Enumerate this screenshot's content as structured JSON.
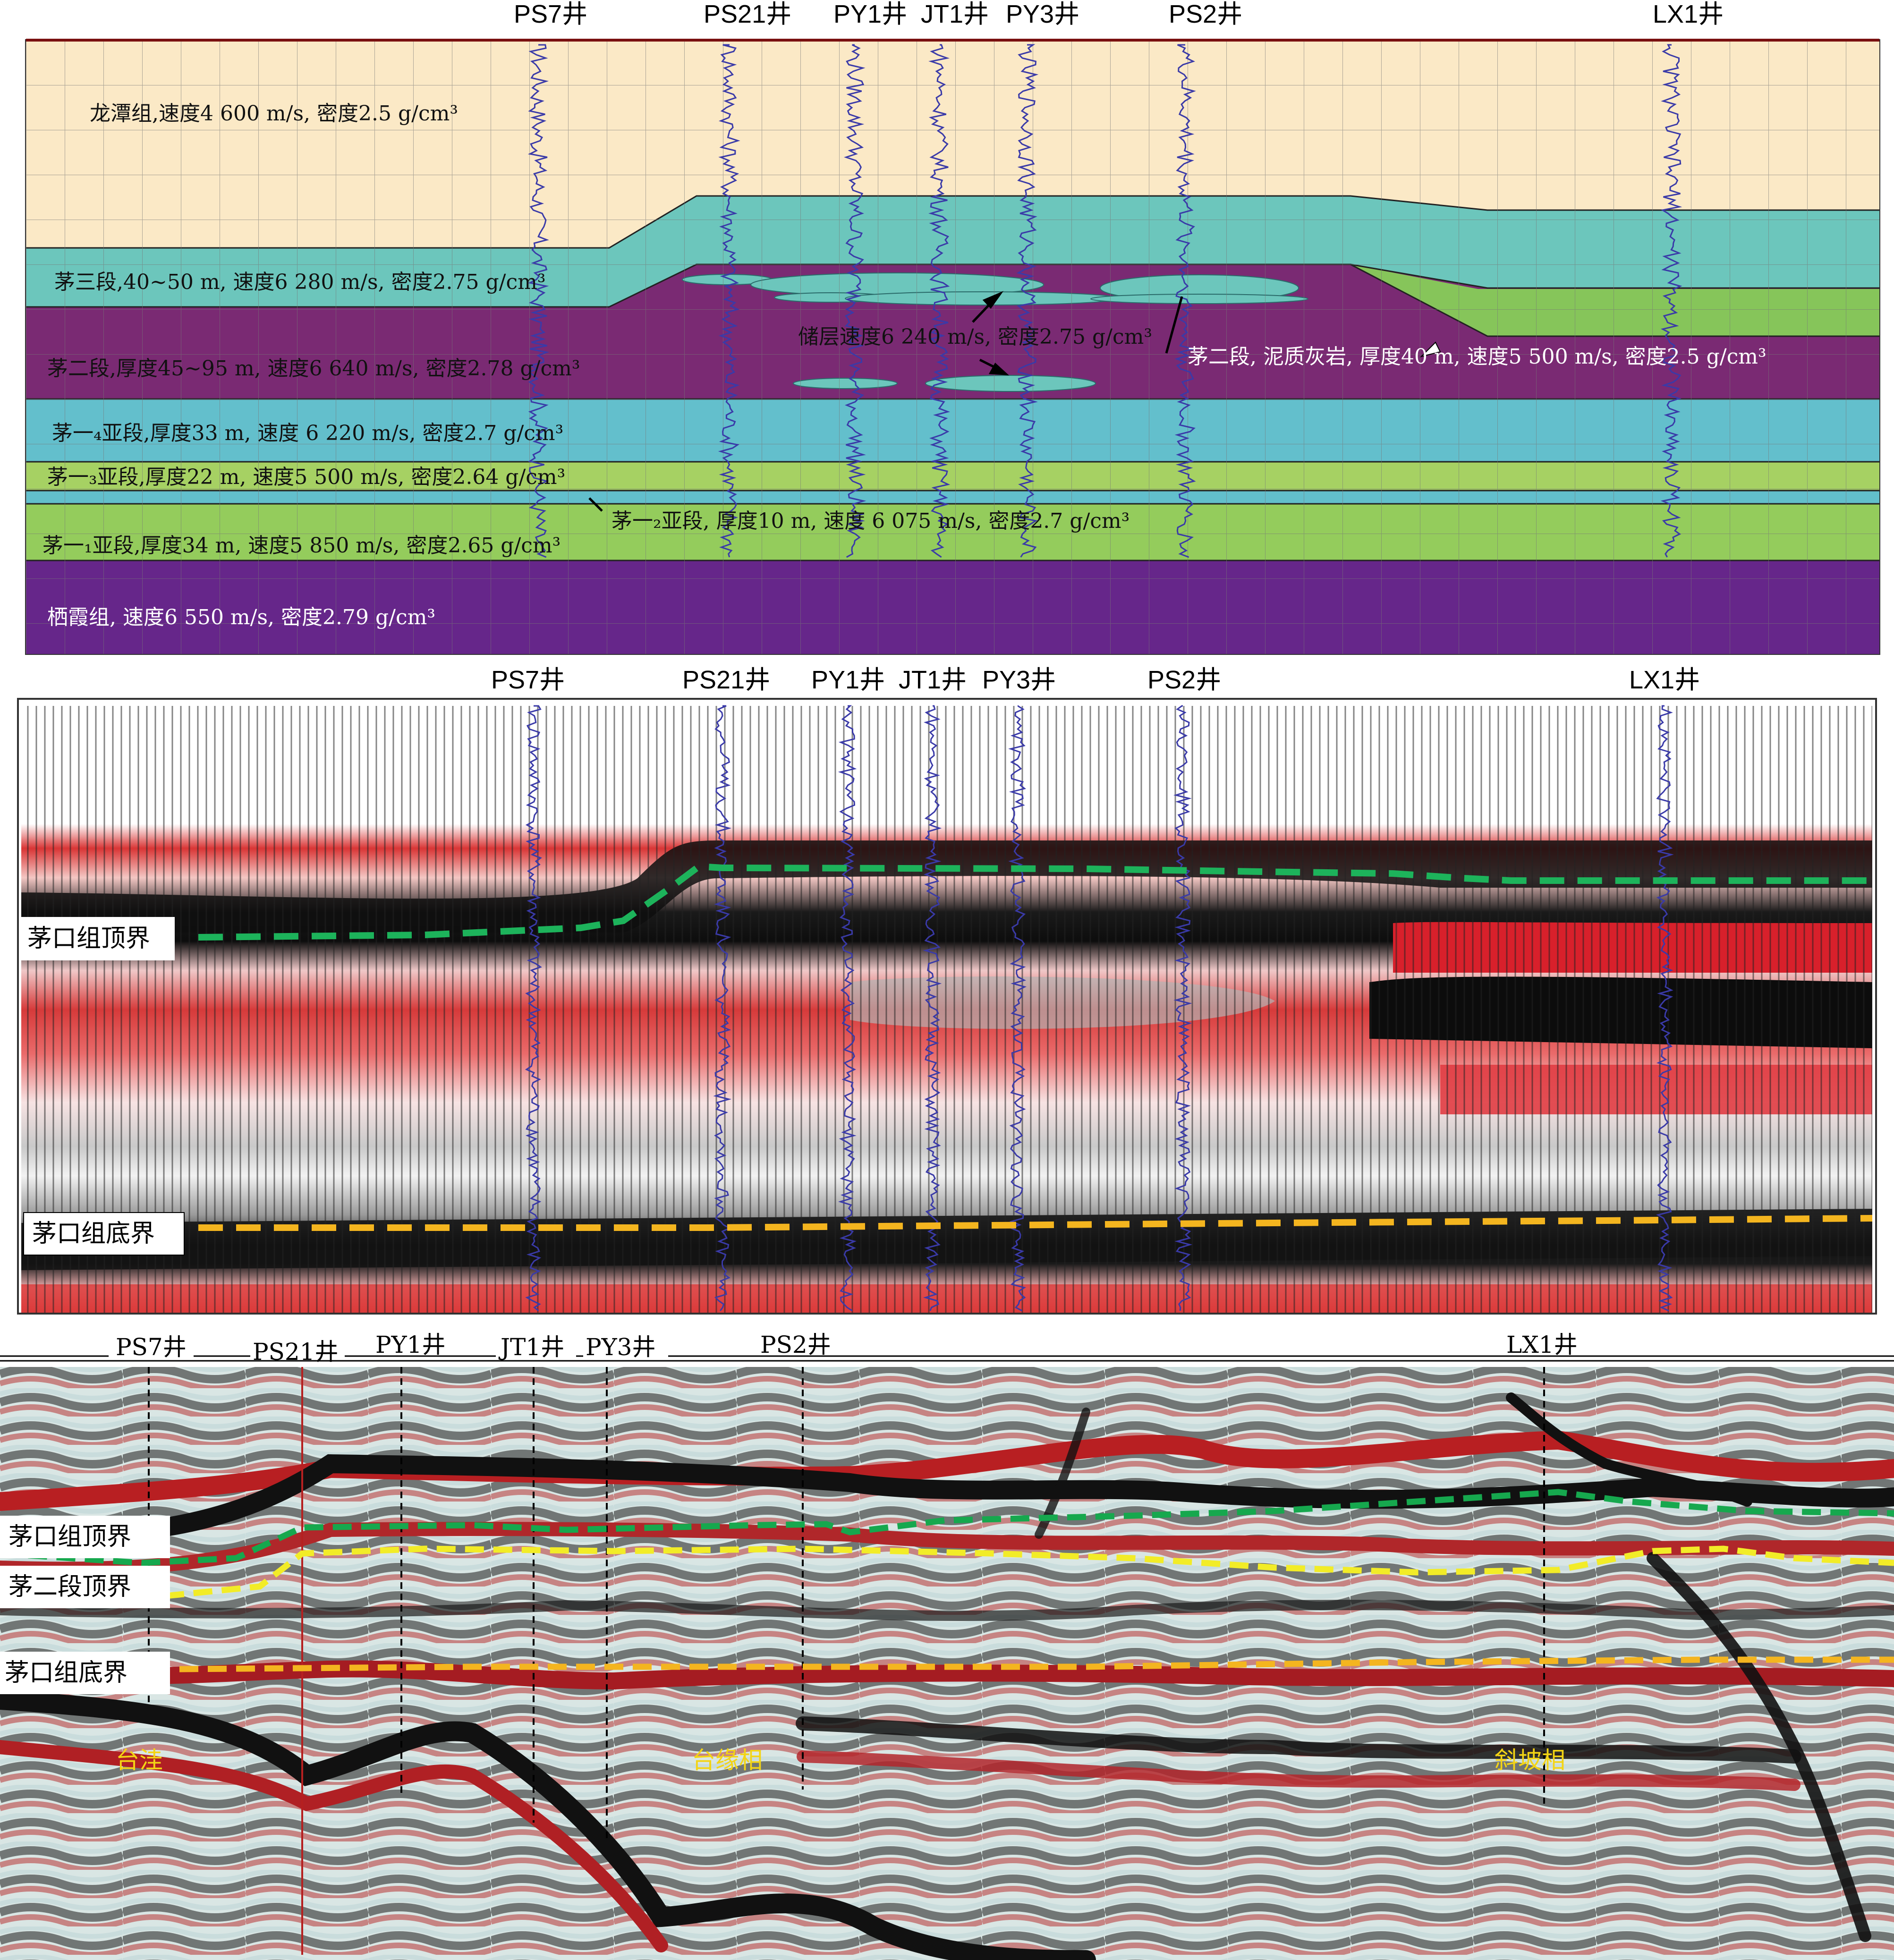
{
  "panel1": {
    "wells": [
      "PS7井",
      "PS21井",
      "PY1井",
      "JT1井",
      "PY3井",
      "PS2井",
      "LX1井"
    ],
    "layers": {
      "longtan": "龙潭组,速度4 600 m/s, 密度2.5 g/cm³",
      "mao3": "茅三段,40~50 m, 速度6 280 m/s, 密度2.75 g/cm³",
      "reservoir": "储层速度6 240  m/s, 密度2.75 g/cm³",
      "mao2": "茅二段,厚度45~95 m, 速度6 640 m/s, 密度2.78  g/cm³",
      "mao2_marl": "茅二段, 泥质灰岩, 厚度40 m, 速度5 500 m/s, 密度2.5 g/cm³",
      "mao1_4": "茅一₄亚段,厚度33 m, 速度 6 220 m/s, 密度2.7 g/cm³",
      "mao1_3": "茅一₃亚段,厚度22 m, 速度5 500 m/s, 密度2.64 g/cm³",
      "mao1_2": "茅一₂亚段, 厚度10  m, 速度 6 075 m/s, 密度2.7 g/cm³",
      "mao1_1": "茅一₁亚段,厚度34 m, 速度5 850 m/s, 密度2.65 g/cm³",
      "qixia": "栖霞组, 速度6 550 m/s, 密度2.79 g/cm³"
    },
    "colors": {
      "longtan": "#fbe9c6",
      "mao3": "#6cc6bc",
      "mao2": "#7a2a73",
      "mao2_marl": "#86c55a",
      "mao1_4": "#63bfcc",
      "mao1_3": "#a6d163",
      "mao1_2": "#62bfcc",
      "mao1_1": "#94cc5c",
      "qixia": "#66268a",
      "reservoir": "#6cc6bc"
    }
  },
  "panel2": {
    "wells": [
      "PS7井",
      "PS21井",
      "PY1井",
      "JT1井",
      "PY3井",
      "PS2井",
      "LX1井"
    ],
    "top_label": "茅口组顶界",
    "base_label": "茅口组底界"
  },
  "panel3": {
    "wells": [
      "PS7井",
      "PS21井",
      "PY1井",
      "JT1井",
      "PY3井",
      "PS2井",
      "LX1井"
    ],
    "top_label": "茅口组顶界",
    "mao2_top_label": "茅二段顶界",
    "base_label": "茅口组底界",
    "facies": [
      "台洼",
      "台缘相",
      "斜坡相"
    ]
  }
}
